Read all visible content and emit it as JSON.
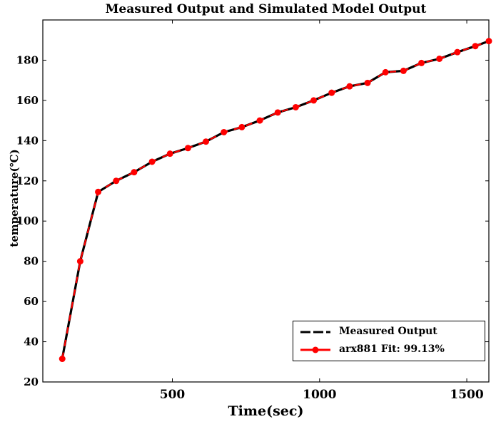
{
  "chart_data": {
    "type": "line",
    "title": "Measured Output and Simulated Model Output",
    "xlabel": "Time(sec)",
    "ylabel": "temperature(℃)",
    "xlim": [
      60,
      1575
    ],
    "ylim": [
      20,
      200
    ],
    "xticks": [
      500,
      1000,
      1500
    ],
    "yticks": [
      20,
      40,
      60,
      80,
      100,
      120,
      140,
      160,
      180
    ],
    "grid": false,
    "legend_position": "bottom-right",
    "x": [
      126,
      187,
      248,
      309,
      370,
      431,
      492,
      553,
      614,
      675,
      736,
      797,
      858,
      919,
      980,
      1041,
      1102,
      1163,
      1224,
      1285,
      1346,
      1407,
      1468,
      1529,
      1575
    ],
    "series": [
      {
        "name": "Measured Output",
        "color": "#000000",
        "style": "solid",
        "values": [
          31.5,
          80,
          114.5,
          120,
          124.3,
          129.5,
          133.5,
          136.3,
          139.5,
          144.2,
          146.7,
          150,
          154,
          156.6,
          160,
          163.8,
          167,
          168.7,
          174,
          174.7,
          178.6,
          180.7,
          184,
          187,
          189.5
        ]
      },
      {
        "name": "arx881 Fit: 99.13%",
        "color": "#ff0000",
        "style": "dashed",
        "marker": "circle",
        "values": [
          31.5,
          80,
          114.5,
          120,
          124.3,
          129.5,
          133.5,
          136.3,
          139.5,
          144.2,
          146.7,
          150,
          154,
          156.6,
          160,
          163.8,
          167,
          168.7,
          174,
          174.7,
          178.6,
          180.7,
          184,
          187,
          189.5
        ]
      }
    ]
  }
}
